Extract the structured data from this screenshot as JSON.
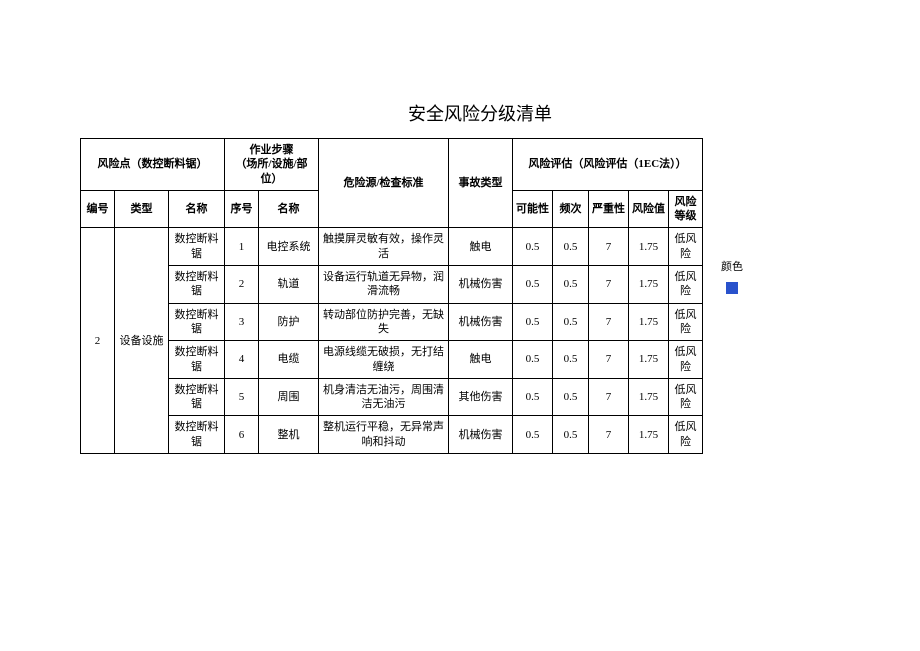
{
  "title": "安全风险分级清单",
  "headers": {
    "risk_point_group": "风险点（数控断料锯）",
    "step_group": "作业步骤\n（场所/设施/部位）",
    "hazard": "危险源/检查标准",
    "accident": "事故类型",
    "eval_group": "风险评估（风险评估（1EC法））",
    "id": "编号",
    "type": "类型",
    "name": "名称",
    "seq": "序号",
    "step_name": "名称",
    "possibility": "可能性",
    "frequency": "频次",
    "severity": "严重性",
    "risk_value": "风险值",
    "risk_level": "风险\n等级"
  },
  "merged": {
    "id": "2",
    "type": "设备设施"
  },
  "rows": [
    {
      "name": "数控断料锯",
      "seq": "1",
      "step": "电控系统",
      "hazard": "触摸屏灵敏有效，操作灵活",
      "accident": "触电",
      "p": "0.5",
      "f": "0.5",
      "s": "7",
      "v": "1.75",
      "lvl": "低风险"
    },
    {
      "name": "数控断料锯",
      "seq": "2",
      "step": "轨道",
      "hazard": "设备运行轨道无异物，润滑流畅",
      "accident": "机械伤害",
      "p": "0.5",
      "f": "0.5",
      "s": "7",
      "v": "1.75",
      "lvl": "低风险"
    },
    {
      "name": "数控断料锯",
      "seq": "3",
      "step": "防护",
      "hazard": "转动部位防护完善，无缺失",
      "accident": "机械伤害",
      "p": "0.5",
      "f": "0.5",
      "s": "7",
      "v": "1.75",
      "lvl": "低风险"
    },
    {
      "name": "数控断料锯",
      "seq": "4",
      "step": "电缆",
      "hazard": "电源线缆无破损，无打结缠绕",
      "accident": "触电",
      "p": "0.5",
      "f": "0.5",
      "s": "7",
      "v": "1.75",
      "lvl": "低风险"
    },
    {
      "name": "数控断料锯",
      "seq": "5",
      "step": "周围",
      "hazard": "机身清洁无油污，周围清洁无油污",
      "accident": "其他伤害",
      "p": "0.5",
      "f": "0.5",
      "s": "7",
      "v": "1.75",
      "lvl": "低风险"
    },
    {
      "name": "数控断料锯",
      "seq": "6",
      "step": "整机",
      "hazard": "整机运行平稳，无异常声响和抖动",
      "accident": "机械伤害",
      "p": "0.5",
      "f": "0.5",
      "s": "7",
      "v": "1.75",
      "lvl": "低风险"
    }
  ],
  "side": {
    "label": "颜色",
    "color": "#2952cc"
  },
  "col_widths": {
    "id": 34,
    "type": 54,
    "name": 56,
    "seq": 34,
    "step_name": 60,
    "hazard": 130,
    "accident": 64,
    "p": 40,
    "f": 36,
    "s": 40,
    "v": 40,
    "lvl": 34
  },
  "background": "#ffffff",
  "border_color": "#000000",
  "font_size": 11,
  "title_fontsize": 18
}
